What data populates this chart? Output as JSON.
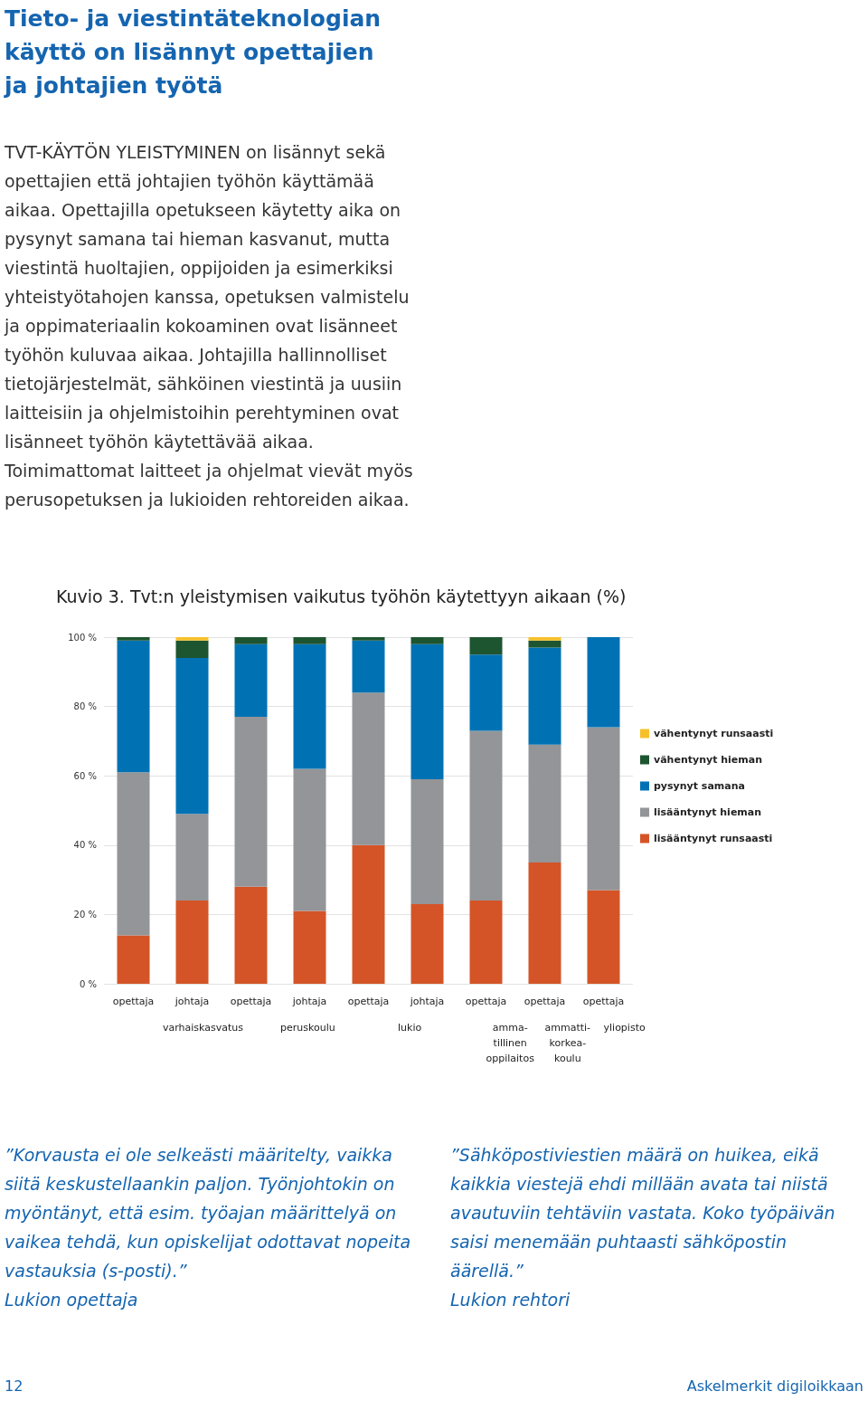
{
  "chart_data": {
    "type": "bar",
    "stacked": true,
    "title": "Kuvio 3. Tvt:n yleistymisen vaikutus työhön käytettyyn aikaan (%)",
    "categories": [
      "opettaja",
      "johtaja",
      "opettaja",
      "johtaja",
      "opettaja",
      "johtaja",
      "opettaja",
      "opettaja",
      "opettaja"
    ],
    "series": [
      {
        "name": "lisääntynyt runsaasti",
        "color": "#d45427",
        "values": [
          14,
          24,
          28,
          21,
          40,
          23,
          24,
          35,
          27
        ]
      },
      {
        "name": "lisääntynyt hieman",
        "color": "#939598",
        "values": [
          47,
          25,
          49,
          41,
          44,
          36,
          49,
          34,
          47
        ]
      },
      {
        "name": "pysynyt samana",
        "color": "#0072b4",
        "values": [
          38,
          45,
          21,
          36,
          15,
          39,
          22,
          28,
          26
        ]
      },
      {
        "name": "vähentynyt hieman",
        "color": "#1d5530",
        "values": [
          1,
          5,
          2,
          2,
          1,
          2,
          5,
          2,
          0
        ]
      },
      {
        "name": "vähentynyt runsaasti",
        "color": "#f7c02b",
        "values": [
          0,
          1,
          0,
          0,
          0,
          0,
          0,
          1,
          0
        ]
      }
    ],
    "ylim": [
      0,
      100
    ],
    "yticks": [
      {
        "value": 0,
        "label": "0 %"
      },
      {
        "value": 20,
        "label": "20 %"
      },
      {
        "value": 40,
        "label": "40 %"
      },
      {
        "value": 60,
        "label": "60 %"
      },
      {
        "value": 80,
        "label": "80 %"
      },
      {
        "value": 100,
        "label": "100 %"
      }
    ],
    "grid": "y",
    "legend": "right",
    "annotations": [
      "Tieto- ja viestintäteknologian käyttö on lisännyt opettajien ja johtajien työtä",
      "TVT-KÄYTÖN YLEISTYMINEN on lisännyt sekä opettajien että johtajien työhön käyttämää aikaa. Opettajilla opetukseen käytetty aika on pysynyt samana tai hieman kasvanut, mutta viestintä huoltajien, oppijoiden ja esimerkiksi yhteistyötahojen kanssa, opetuksen valmistelu ja oppimateriaalin kokoaminen ovat lisänneet työhön kuluvaa aikaa. Johtajilla hallinnolliset tietojärjestelmät, sähköinen viestintä ja uusiin laitteisiin ja ohjelmistoihin perehtyminen ovat lisänneet työhön käytettävää aikaa. Toimimattomat laitteet ja ohjelmat vievät myös perusopetuksen ja lukioiden rehtoreiden aikaa.",
      "”Korvausta ei ole selkeästi määritelty, vaikka siitä keskustellaankin paljon. Työnjohtokin on myöntänyt, että esim. työajan määrittelyä on vaikea tehdä, kun opiskelijat odottavat nopeita vastauksia (s-posti).”",
      "Lukion opettaja",
      "”Sähköpostiviestien määrä on huikea, eikä kaikkia viestejä ehdi millään avata tai niistä avautuviin tehtäviin vastata. Koko työpäivän saisi menemään puhtaasti sähköpostin äärellä.”",
      "Lukion rehtori",
      "12",
      "Askelmerkit digiloikkaan",
      "varhaiskasvatus",
      "peruskoulu",
      "lukio",
      "amma-\ntillinen\noppilaitos",
      "ammatti-\nkorkea-\nkoulu",
      "yliopisto"
    ]
  }
}
